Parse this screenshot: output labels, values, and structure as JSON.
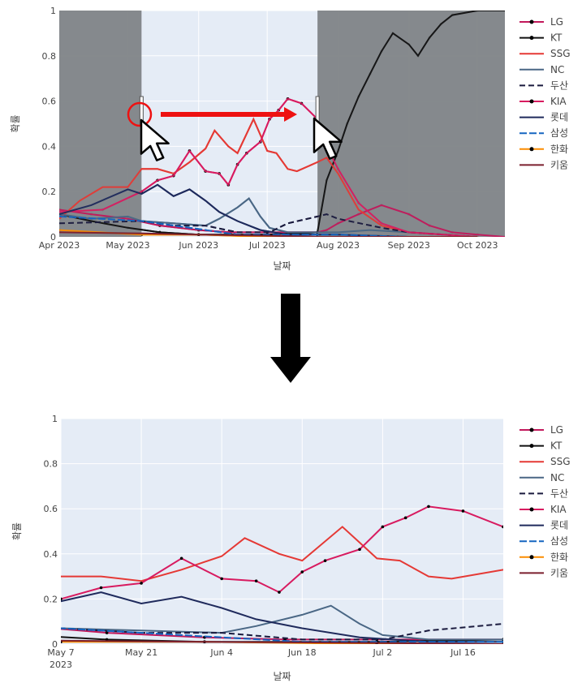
{
  "colors": {
    "LG": "#c2185b",
    "KT": "#111111",
    "SSG": "#e53935",
    "NC": "#4a6785",
    "두산": "#1a1a3e",
    "KIA": "#d81b60",
    "롯데": "#1f2a5c",
    "삼성": "#1565c0",
    "한화": "#fb8c00",
    "키움": "#7b1f2e",
    "plot_bg": "#e5ecf6",
    "shade": "#808487",
    "arrow_red": "#ee1111",
    "arrow_black": "#000000"
  },
  "chart_data": [
    {
      "type": "line",
      "xlabel": "날짜",
      "ylabel": "확률",
      "x_range": [
        "2023-04-01",
        "2023-10-13"
      ],
      "ylim": [
        0,
        1
      ],
      "x_ticks": [
        "Apr 2023",
        "May 2023",
        "Jun 2023",
        "Jul 2023",
        "Aug 2023",
        "Sep 2023",
        "Oct 2023"
      ],
      "y_ticks": [
        "0",
        "0.2",
        "0.4",
        "0.6",
        "0.8",
        "1"
      ],
      "grid": true,
      "legend": "right",
      "selection": [
        "2023-05-07",
        "2023-07-23"
      ],
      "series": [
        {
          "name": "LG",
          "points": [
            [
              "2023-04-01",
              0.12
            ],
            [
              "2023-04-15",
              0.1
            ],
            [
              "2023-05-01",
              0.08
            ],
            [
              "2023-05-15",
              0.05
            ],
            [
              "2023-06-01",
              0.03
            ],
            [
              "2023-06-15",
              0.02
            ],
            [
              "2023-07-01",
              0.02
            ],
            [
              "2023-07-23",
              0.02
            ],
            [
              "2023-07-27",
              0.03
            ],
            [
              "2023-08-01",
              0.06
            ],
            [
              "2023-08-10",
              0.1
            ],
            [
              "2023-08-20",
              0.14
            ],
            [
              "2023-09-01",
              0.1
            ],
            [
              "2023-09-10",
              0.05
            ],
            [
              "2023-09-20",
              0.02
            ],
            [
              "2023-10-01",
              0.01
            ],
            [
              "2023-10-13",
              0.0
            ]
          ]
        },
        {
          "name": "KT",
          "points": [
            [
              "2023-04-01",
              0.1
            ],
            [
              "2023-04-15",
              0.07
            ],
            [
              "2023-05-01",
              0.04
            ],
            [
              "2023-05-15",
              0.02
            ],
            [
              "2023-06-01",
              0.01
            ],
            [
              "2023-07-01",
              0.01
            ],
            [
              "2023-07-23",
              0.02
            ],
            [
              "2023-07-27",
              0.25
            ],
            [
              "2023-08-01",
              0.38
            ],
            [
              "2023-08-05",
              0.5
            ],
            [
              "2023-08-10",
              0.62
            ],
            [
              "2023-08-15",
              0.72
            ],
            [
              "2023-08-20",
              0.82
            ],
            [
              "2023-08-25",
              0.9
            ],
            [
              "2023-09-01",
              0.85
            ],
            [
              "2023-09-05",
              0.8
            ],
            [
              "2023-09-10",
              0.88
            ],
            [
              "2023-09-15",
              0.94
            ],
            [
              "2023-09-20",
              0.98
            ],
            [
              "2023-10-01",
              1.0
            ],
            [
              "2023-10-13",
              1.0
            ]
          ]
        },
        {
          "name": "SSG",
          "points": [
            [
              "2023-04-01",
              0.08
            ],
            [
              "2023-04-10",
              0.16
            ],
            [
              "2023-04-20",
              0.22
            ],
            [
              "2023-05-01",
              0.22
            ],
            [
              "2023-05-07",
              0.3
            ],
            [
              "2023-05-14",
              0.3
            ],
            [
              "2023-05-21",
              0.28
            ],
            [
              "2023-05-28",
              0.33
            ],
            [
              "2023-06-04",
              0.39
            ],
            [
              "2023-06-08",
              0.47
            ],
            [
              "2023-06-14",
              0.4
            ],
            [
              "2023-06-18",
              0.37
            ],
            [
              "2023-06-25",
              0.52
            ],
            [
              "2023-06-28",
              0.45
            ],
            [
              "2023-07-01",
              0.38
            ],
            [
              "2023-07-05",
              0.37
            ],
            [
              "2023-07-10",
              0.3
            ],
            [
              "2023-07-14",
              0.29
            ],
            [
              "2023-07-23",
              0.33
            ],
            [
              "2023-07-27",
              0.35
            ],
            [
              "2023-08-01",
              0.28
            ],
            [
              "2023-08-10",
              0.12
            ],
            [
              "2023-08-20",
              0.05
            ],
            [
              "2023-09-01",
              0.02
            ],
            [
              "2023-10-01",
              0.0
            ]
          ]
        },
        {
          "name": "NC",
          "points": [
            [
              "2023-04-01",
              0.1
            ],
            [
              "2023-04-15",
              0.08
            ],
            [
              "2023-05-01",
              0.09
            ],
            [
              "2023-05-07",
              0.07
            ],
            [
              "2023-05-21",
              0.06
            ],
            [
              "2023-06-04",
              0.05
            ],
            [
              "2023-06-10",
              0.08
            ],
            [
              "2023-06-18",
              0.13
            ],
            [
              "2023-06-23",
              0.17
            ],
            [
              "2023-06-28",
              0.09
            ],
            [
              "2023-07-02",
              0.04
            ],
            [
              "2023-07-10",
              0.02
            ],
            [
              "2023-07-23",
              0.02
            ],
            [
              "2023-08-01",
              0.02
            ],
            [
              "2023-08-15",
              0.03
            ],
            [
              "2023-09-01",
              0.02
            ],
            [
              "2023-10-01",
              0.0
            ]
          ]
        },
        {
          "name": "두산",
          "points": [
            [
              "2023-04-01",
              0.06
            ],
            [
              "2023-05-07",
              0.07
            ],
            [
              "2023-05-21",
              0.05
            ],
            [
              "2023-06-04",
              0.05
            ],
            [
              "2023-06-18",
              0.02
            ],
            [
              "2023-07-02",
              0.02
            ],
            [
              "2023-07-10",
              0.06
            ],
            [
              "2023-07-23",
              0.09
            ],
            [
              "2023-07-27",
              0.1
            ],
            [
              "2023-08-01",
              0.08
            ],
            [
              "2023-08-20",
              0.04
            ],
            [
              "2023-09-01",
              0.02
            ],
            [
              "2023-10-01",
              0.0
            ]
          ]
        },
        {
          "name": "KIA",
          "points": [
            [
              "2023-04-01",
              0.11
            ],
            [
              "2023-04-20",
              0.12
            ],
            [
              "2023-05-07",
              0.2
            ],
            [
              "2023-05-14",
              0.25
            ],
            [
              "2023-05-21",
              0.27
            ],
            [
              "2023-05-28",
              0.38
            ],
            [
              "2023-06-04",
              0.29
            ],
            [
              "2023-06-10",
              0.28
            ],
            [
              "2023-06-14",
              0.23
            ],
            [
              "2023-06-18",
              0.32
            ],
            [
              "2023-06-22",
              0.37
            ],
            [
              "2023-06-28",
              0.42
            ],
            [
              "2023-07-02",
              0.52
            ],
            [
              "2023-07-06",
              0.56
            ],
            [
              "2023-07-10",
              0.61
            ],
            [
              "2023-07-16",
              0.59
            ],
            [
              "2023-07-23",
              0.52
            ],
            [
              "2023-07-27",
              0.4
            ],
            [
              "2023-08-01",
              0.3
            ],
            [
              "2023-08-10",
              0.15
            ],
            [
              "2023-08-20",
              0.06
            ],
            [
              "2023-09-01",
              0.02
            ],
            [
              "2023-10-01",
              0.0
            ]
          ]
        },
        {
          "name": "롯데",
          "points": [
            [
              "2023-04-01",
              0.1
            ],
            [
              "2023-04-15",
              0.14
            ],
            [
              "2023-05-01",
              0.21
            ],
            [
              "2023-05-07",
              0.19
            ],
            [
              "2023-05-14",
              0.23
            ],
            [
              "2023-05-21",
              0.18
            ],
            [
              "2023-05-28",
              0.21
            ],
            [
              "2023-06-04",
              0.16
            ],
            [
              "2023-06-10",
              0.11
            ],
            [
              "2023-06-18",
              0.07
            ],
            [
              "2023-06-28",
              0.03
            ],
            [
              "2023-07-10",
              0.01
            ],
            [
              "2023-07-23",
              0.01
            ],
            [
              "2023-08-01",
              0.01
            ],
            [
              "2023-09-01",
              0.0
            ]
          ]
        },
        {
          "name": "삼성",
          "points": [
            [
              "2023-04-01",
              0.09
            ],
            [
              "2023-05-07",
              0.07
            ],
            [
              "2023-05-21",
              0.05
            ],
            [
              "2023-06-04",
              0.03
            ],
            [
              "2023-06-18",
              0.01
            ],
            [
              "2023-07-02",
              0.01
            ],
            [
              "2023-07-23",
              0.01
            ],
            [
              "2023-08-01",
              0.01
            ],
            [
              "2023-09-01",
              0.0
            ]
          ]
        },
        {
          "name": "한화",
          "points": [
            [
              "2023-04-01",
              0.03
            ],
            [
              "2023-05-07",
              0.01
            ],
            [
              "2023-06-01",
              0.01
            ],
            [
              "2023-07-01",
              0.0
            ],
            [
              "2023-07-23",
              0.0
            ],
            [
              "2023-08-01",
              0.0
            ],
            [
              "2023-10-01",
              0.0
            ]
          ]
        },
        {
          "name": "키움",
          "points": [
            [
              "2023-04-01",
              0.02
            ],
            [
              "2023-05-07",
              0.015
            ],
            [
              "2023-06-01",
              0.01
            ],
            [
              "2023-07-01",
              0.005
            ],
            [
              "2023-07-23",
              0.0
            ],
            [
              "2023-08-01",
              0.0
            ],
            [
              "2023-10-01",
              0.0
            ]
          ]
        }
      ]
    },
    {
      "type": "line",
      "xlabel": "날짜",
      "ylabel": "확률",
      "x_range": [
        "2023-05-07",
        "2023-07-23"
      ],
      "ylim": [
        0,
        1
      ],
      "x_ticks": [
        "May 7",
        "May 21",
        "Jun 4",
        "Jun 18",
        "Jul 2",
        "Jul 16"
      ],
      "x_tick_year": "2023",
      "y_ticks": [
        "0",
        "0.2",
        "0.4",
        "0.6",
        "0.8",
        "1"
      ],
      "grid": true,
      "legend": "right",
      "series_from": "chart_data.0.series"
    }
  ],
  "legend": [
    "LG",
    "KT",
    "SSG",
    "NC",
    "두산",
    "KIA",
    "롯데",
    "삼성",
    "한화",
    "키움"
  ]
}
